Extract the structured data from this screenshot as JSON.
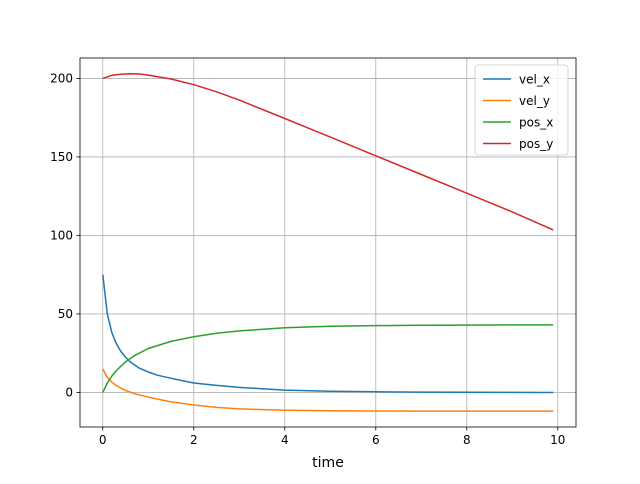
{
  "chart_data": {
    "type": "line",
    "title": "",
    "xlabel": "time",
    "ylabel": "",
    "xlim": [
      -0.5,
      10.4
    ],
    "ylim": [
      -22,
      213
    ],
    "xticks": [
      0,
      2,
      4,
      6,
      8,
      10
    ],
    "yticks": [
      0,
      50,
      100,
      150,
      200
    ],
    "grid": true,
    "legend_position": "upper-right",
    "series": [
      {
        "name": "vel_x",
        "color": "#1f77b4",
        "x": [
          0,
          0.1,
          0.2,
          0.3,
          0.4,
          0.5,
          0.6,
          0.8,
          1.0,
          1.2,
          1.5,
          2.0,
          2.5,
          3.0,
          4.0,
          5.0,
          6.0,
          7.0,
          8.0,
          9.0,
          9.9
        ],
        "y": [
          75,
          50,
          38,
          31,
          26,
          22.5,
          19.5,
          15.5,
          13,
          11,
          9,
          6,
          4.5,
          3.2,
          1.5,
          0.8,
          0.4,
          0.2,
          0.1,
          0.05,
          0
        ]
      },
      {
        "name": "vel_y",
        "color": "#ff7f0e",
        "x": [
          0,
          0.1,
          0.2,
          0.3,
          0.4,
          0.5,
          0.7,
          1.0,
          1.5,
          2.0,
          2.5,
          3.0,
          4.0,
          5.0,
          6.0,
          7.0,
          8.0,
          9.0,
          9.9
        ],
        "y": [
          15,
          9.5,
          6.5,
          4.3,
          2.7,
          1.3,
          -0.8,
          -3,
          -6,
          -8,
          -9.5,
          -10.5,
          -11.3,
          -11.7,
          -11.8,
          -11.9,
          -11.9,
          -11.9,
          -11.9
        ]
      },
      {
        "name": "pos_x",
        "color": "#2ca02c",
        "x": [
          0,
          0.1,
          0.2,
          0.3,
          0.5,
          0.7,
          1.0,
          1.5,
          2.0,
          2.5,
          3.0,
          4.0,
          5.0,
          6.0,
          7.0,
          8.0,
          9.0,
          9.9
        ],
        "y": [
          0,
          6,
          10.5,
          14,
          19.5,
          23.5,
          28,
          32.5,
          35.5,
          37.7,
          39.2,
          41.2,
          42.1,
          42.6,
          42.8,
          42.9,
          43,
          43
        ]
      },
      {
        "name": "pos_y",
        "color": "#d62728",
        "x": [
          0,
          0.2,
          0.4,
          0.6,
          0.8,
          1.0,
          1.5,
          2.0,
          2.5,
          3.0,
          4.0,
          5.0,
          6.0,
          7.0,
          8.0,
          9.0,
          9.9
        ],
        "y": [
          200,
          202,
          202.7,
          203,
          202.8,
          202.1,
          199.6,
          196,
          191.5,
          186.2,
          174.5,
          162.6,
          150.7,
          138.8,
          126.9,
          115,
          103.5
        ]
      }
    ]
  }
}
